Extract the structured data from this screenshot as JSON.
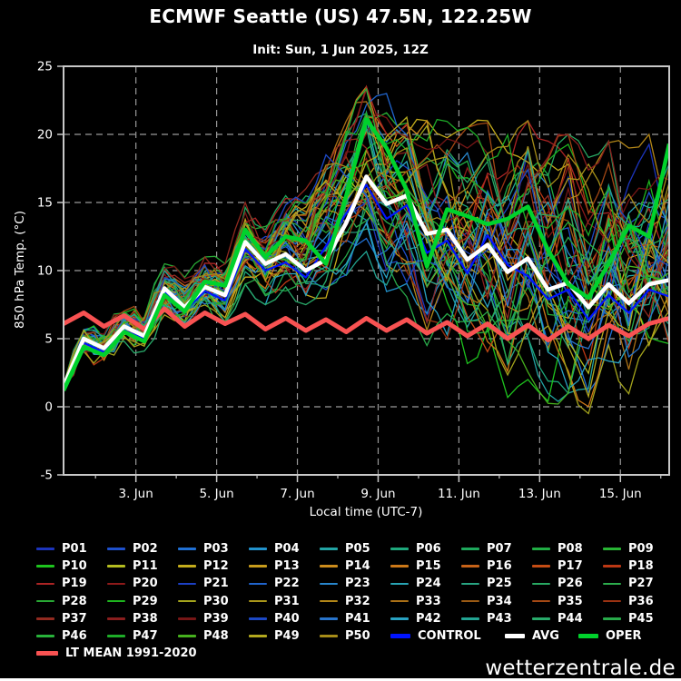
{
  "header": {
    "title": "ECMWF Seattle (US) 47.5N, 122.25W",
    "subtitle": "Init: Sun, 1 Jun 2025, 12Z"
  },
  "axes": {
    "y_label": "850 hPa Temp. (°C)",
    "x_label": "Local time (UTC-7)"
  },
  "footer": {
    "watermark": "wetterzentrale.de"
  },
  "colors": {
    "background": "#000000",
    "plot_border": "#c8c8c8",
    "grid": "#999999",
    "text": "#ffffff"
  },
  "chart_data": {
    "type": "line",
    "title": "ECMWF Seattle (US) 47.5N, 122.25W",
    "subtitle": "Init: Sun, 1 Jun 2025, 12Z",
    "xlabel": "Local time (UTC-7)",
    "ylabel": "850 hPa Temp. (°C)",
    "grid": "dashed",
    "x_hours": [
      0,
      12,
      24,
      36,
      48,
      60,
      72,
      84,
      96,
      108,
      120,
      132,
      144,
      156,
      168,
      180,
      192,
      204,
      216,
      228,
      240,
      252,
      264,
      276,
      288,
      300,
      312,
      324,
      336,
      348,
      360
    ],
    "x_axis": {
      "range_hours": [
        0,
        360
      ],
      "major_ticks": [
        {
          "hour": 43,
          "label": "3. Jun"
        },
        {
          "hour": 91,
          "label": "5. Jun"
        },
        {
          "hour": 139,
          "label": "7. Jun"
        },
        {
          "hour": 187,
          "label": "9. Jun"
        },
        {
          "hour": 235,
          "label": "11. Jun"
        },
        {
          "hour": 283,
          "label": "13. Jun"
        },
        {
          "hour": 331,
          "label": "15. Jun"
        }
      ],
      "minor_tick_first_hour": 19,
      "minor_tick_every_hours": 24
    },
    "y_axis": {
      "range": [
        -5,
        25
      ],
      "ticks": [
        {
          "v": -5,
          "label": "-5"
        },
        {
          "v": 0,
          "label": "0"
        },
        {
          "v": 5,
          "label": "5"
        },
        {
          "v": 10,
          "label": "10"
        },
        {
          "v": 15,
          "label": "15"
        },
        {
          "v": 20,
          "label": "20"
        },
        {
          "v": 25,
          "label": "25"
        }
      ],
      "gridlines": [
        0,
        5,
        10,
        15,
        20
      ]
    },
    "series": [
      {
        "name": "CONTROL",
        "color": "#0014ff",
        "width": 2.2,
        "values": [
          1.4,
          4.7,
          4.0,
          5.6,
          5.0,
          8.4,
          7.0,
          8.5,
          7.8,
          11.6,
          10.0,
          10.6,
          9.5,
          11.8,
          14.2,
          16.3,
          13.8,
          14.8,
          11.3,
          12.2,
          9.8,
          12.6,
          10.4,
          9.6,
          7.9,
          8.6,
          6.4,
          8.2,
          6.9,
          8.6,
          8.1
        ]
      },
      {
        "name": "LT MEAN 1991-2020",
        "color": "#f85252",
        "width": 5,
        "values": [
          6.1,
          6.9,
          5.9,
          6.7,
          5.7,
          7.2,
          5.9,
          6.9,
          6.1,
          6.8,
          5.7,
          6.5,
          5.6,
          6.4,
          5.5,
          6.5,
          5.6,
          6.4,
          5.4,
          6.2,
          5.2,
          6.1,
          5.0,
          6.0,
          4.9,
          5.9,
          5.0,
          6.0,
          5.2,
          6.1,
          6.5
        ]
      },
      {
        "name": "AVG",
        "color": "#ffffff",
        "width": 4.5,
        "values": [
          1.5,
          5.0,
          4.3,
          5.9,
          5.2,
          8.7,
          7.3,
          8.8,
          8.2,
          12.1,
          10.5,
          11.2,
          10.0,
          10.8,
          13.5,
          16.9,
          14.9,
          15.5,
          12.7,
          13.0,
          10.8,
          11.9,
          9.9,
          10.9,
          8.6,
          9.1,
          7.3,
          9.0,
          7.6,
          9.0,
          9.3
        ]
      },
      {
        "name": "OPER",
        "color": "#00d22c",
        "width": 4.5,
        "values": [
          1.2,
          4.4,
          3.8,
          5.5,
          4.8,
          8.2,
          7.0,
          9.2,
          8.9,
          13.0,
          11.0,
          12.5,
          12.2,
          10.5,
          15.5,
          21.1,
          19.0,
          15.9,
          10.3,
          14.5,
          14.0,
          13.4,
          13.8,
          14.7,
          11.5,
          9.0,
          8.0,
          10.5,
          13.3,
          12.5,
          19.3
        ]
      }
    ],
    "ensemble": {
      "labels": [
        "P01",
        "P02",
        "P03",
        "P04",
        "P05",
        "P06",
        "P07",
        "P08",
        "P09",
        "P10",
        "P11",
        "P12",
        "P13",
        "P14",
        "P15",
        "P16",
        "P17",
        "P18",
        "P19",
        "P20",
        "P21",
        "P22",
        "P23",
        "P24",
        "P25",
        "P26",
        "P27",
        "P28",
        "P29",
        "P30",
        "P31",
        "P32",
        "P33",
        "P34",
        "P35",
        "P36",
        "P37",
        "P38",
        "P39",
        "P40",
        "P41",
        "P42",
        "P43",
        "P44",
        "P45",
        "P46",
        "P47",
        "P48",
        "P49",
        "P50"
      ],
      "colors": [
        "#1c34bc",
        "#1e50cc",
        "#2070d4",
        "#2292cc",
        "#22a4a4",
        "#1ea87c",
        "#1ea85c",
        "#20ac44",
        "#28b434",
        "#1ec41e",
        "#b4bc20",
        "#c4ac1c",
        "#c89c1c",
        "#cc8c1c",
        "#cc7818",
        "#c66218",
        "#c44c14",
        "#bc3814",
        "#ac2424",
        "#8e1a1a",
        "#1c40c4",
        "#2064cc",
        "#2886cc",
        "#28a4b4",
        "#28a482",
        "#28a862",
        "#2cac4c",
        "#28a834",
        "#1eb41e",
        "#a4a41c",
        "#aa961a",
        "#b28618",
        "#aa7016",
        "#9a5a14",
        "#a44814",
        "#9a3212",
        "#922a20",
        "#8a1e1e",
        "#761616",
        "#1c48c4",
        "#2874cc",
        "#28a2c2",
        "#22a492",
        "#28aa6a",
        "#28aa4a",
        "#28b23a",
        "#1eac28",
        "#46b01e",
        "#b2a81e",
        "#a68c18"
      ],
      "envelope_lower": [
        1.0,
        3.5,
        3.0,
        4.5,
        4.0,
        6.5,
        5.5,
        7.0,
        6.0,
        9.0,
        7.5,
        8.5,
        7.5,
        8.0,
        9.0,
        11.0,
        7.5,
        8.0,
        4.5,
        5.0,
        2.5,
        3.0,
        0.5,
        2.0,
        0.0,
        1.0,
        -0.5,
        1.0,
        0.0,
        1.5,
        2.0
      ],
      "envelope_upper": [
        2.0,
        6.0,
        5.5,
        7.5,
        7.0,
        10.5,
        9.5,
        11.0,
        10.5,
        15.0,
        13.5,
        15.5,
        16.0,
        18.5,
        21.0,
        23.5,
        23.0,
        22.0,
        21.0,
        21.5,
        20.5,
        21.0,
        20.0,
        21.0,
        19.5,
        20.0,
        18.5,
        19.5,
        19.0,
        20.0,
        20.5
      ],
      "line_width": 1.3,
      "seed": 42
    },
    "legend": {
      "member_rows": 6,
      "extra_items": [
        "CONTROL",
        "AVG",
        "OPER"
      ],
      "lt_mean_label": "LT MEAN 1991-2020"
    }
  }
}
